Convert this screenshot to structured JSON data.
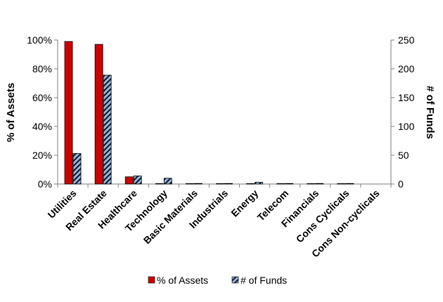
{
  "chart_data": {
    "type": "bar",
    "categories": [
      "Utilities",
      "Real Estate",
      "Healthcare",
      "Technology",
      "Basic Materials",
      "Industrials",
      "Energy",
      "Telecom",
      "Financials",
      "Cons Cyclicals",
      "Cons Non-cyclicals"
    ],
    "series": [
      {
        "name": "% of Assets",
        "axis": "left",
        "color": "#cc0000",
        "values": [
          99,
          97,
          5,
          0.3,
          0.3,
          0.3,
          0.3,
          0.3,
          0.3,
          0.3,
          0
        ]
      },
      {
        "name": "# of Funds",
        "axis": "right",
        "color": "#8db4e2",
        "pattern": "diagonal-stripes",
        "values": [
          53,
          189,
          14,
          10,
          1,
          1,
          3,
          1,
          1,
          1,
          0
        ]
      }
    ],
    "ylabel": "% of Assets",
    "y2label": "# of Funds",
    "ylim": [
      0,
      100
    ],
    "y2lim": [
      0,
      250
    ],
    "yticks": [
      "0%",
      "20%",
      "40%",
      "60%",
      "80%",
      "100%"
    ],
    "y2ticks": [
      "0",
      "50",
      "100",
      "150",
      "200",
      "250"
    ],
    "grid": false,
    "legend_position": "bottom"
  }
}
